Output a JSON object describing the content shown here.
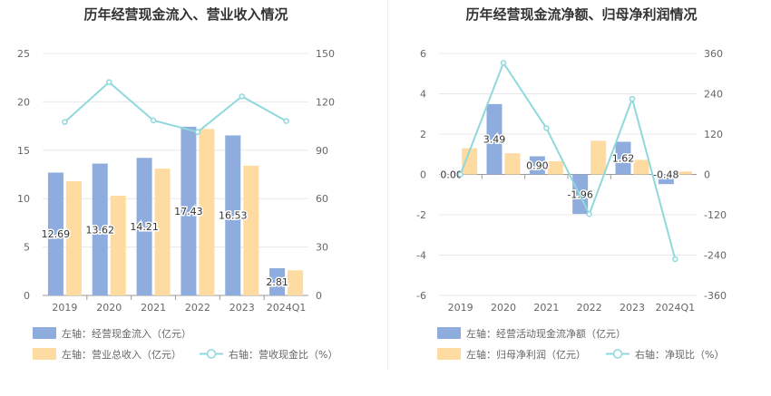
{
  "left": {
    "title": "历年经营现金流入、营业收入情况",
    "categories": [
      "2019",
      "2020",
      "2021",
      "2022",
      "2023",
      "2024Q1"
    ],
    "left_axis": {
      "ticks": [
        0,
        5,
        10,
        15,
        20,
        25
      ],
      "min": 0,
      "max": 25
    },
    "right_axis": {
      "ticks": [
        0,
        30,
        60,
        90,
        120,
        150
      ],
      "min": 0,
      "max": 150
    },
    "legend": [
      {
        "label": "左轴：经营现金流入（亿元）",
        "color": "#8eadde",
        "kind": "rect"
      },
      {
        "label": "左轴：营业总收入（亿元）",
        "color": "#fedca1",
        "kind": "rect"
      },
      {
        "label": "右轴：营收现金比（%）",
        "color": "#8fd8dc",
        "kind": "line"
      }
    ]
  },
  "right": {
    "title": "历年经营现金流净额、归母净利润情况",
    "categories": [
      "2019",
      "2020",
      "2021",
      "2022",
      "2023",
      "2024Q1"
    ],
    "left_axis": {
      "ticks": [
        -6,
        -4,
        -2,
        0,
        2,
        4,
        6
      ],
      "min": -6,
      "max": 6
    },
    "right_axis": {
      "ticks": [
        -360,
        -240,
        -120,
        0,
        120,
        240,
        360
      ],
      "min": -360,
      "max": 360
    },
    "legend": [
      {
        "label": "左轴：经营活动现金流净额（亿元）",
        "color": "#8eadde",
        "kind": "rect"
      },
      {
        "label": "左轴：归母净利润（亿元）",
        "color": "#fedca1",
        "kind": "rect"
      },
      {
        "label": "右轴：净现比（%）",
        "color": "#8fd8dc",
        "kind": "line"
      }
    ]
  },
  "chart_data": [
    {
      "type": "bar",
      "title": "历年经营现金流入、营业收入情况",
      "categories": [
        "2019",
        "2020",
        "2021",
        "2022",
        "2023",
        "2024Q1"
      ],
      "series": [
        {
          "name": "左轴：经营现金流入（亿元）",
          "axis": "left",
          "values": [
            12.69,
            13.62,
            14.21,
            17.43,
            16.53,
            2.81
          ],
          "color": "#8eadde",
          "data_labels": [
            "12.69",
            "13.62",
            "14.21",
            "17.43",
            "16.53",
            "2.81"
          ]
        },
        {
          "name": "左轴：营业总收入（亿元）",
          "axis": "left",
          "values": [
            11.8,
            10.3,
            13.1,
            17.2,
            13.4,
            2.6
          ],
          "color": "#fedca1"
        },
        {
          "name": "右轴：营收现金比（%）",
          "axis": "right",
          "type": "line",
          "values": [
            107.5,
            132.2,
            108.5,
            101.3,
            123.4,
            108.1
          ],
          "color": "#8fd8dc"
        }
      ],
      "ylim_left": [
        0,
        25
      ],
      "ylim_right": [
        0,
        150
      ],
      "grid": true,
      "legend_position": "bottom"
    },
    {
      "type": "bar",
      "title": "历年经营现金流净额、归母净利润情况",
      "categories": [
        "2019",
        "2020",
        "2021",
        "2022",
        "2023",
        "2024Q1"
      ],
      "series": [
        {
          "name": "左轴：经营活动现金流净额（亿元）",
          "axis": "left",
          "values": [
            0.0,
            3.49,
            0.9,
            -1.96,
            1.62,
            -0.48
          ],
          "color": "#8eadde",
          "data_labels": [
            "0.00",
            "3.49",
            "0.90",
            "-1.96",
            "1.62",
            "-0.48"
          ]
        },
        {
          "name": "左轴：归母净利润（亿元）",
          "axis": "left",
          "values": [
            1.3,
            1.05,
            0.65,
            1.67,
            0.72,
            0.15
          ],
          "color": "#fedca1"
        },
        {
          "name": "右轴：净现比（%）",
          "axis": "right",
          "type": "line",
          "values": [
            0,
            332,
            138,
            -118,
            225,
            -252
          ],
          "color": "#8fd8dc"
        }
      ],
      "ylim_left": [
        -6,
        6
      ],
      "ylim_right": [
        -360,
        360
      ],
      "grid": true,
      "legend_position": "bottom"
    }
  ]
}
